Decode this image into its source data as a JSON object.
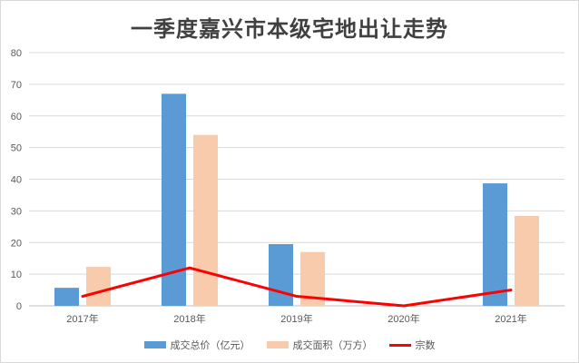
{
  "chart_data": {
    "type": "bar",
    "title": "一季度嘉兴市本级宅地出让走势",
    "categories": [
      "2017年",
      "2018年",
      "2019年",
      "2020年",
      "2021年"
    ],
    "ylim": [
      0,
      80
    ],
    "yticks": [
      0,
      10,
      20,
      30,
      40,
      50,
      60,
      70,
      80
    ],
    "grid": true,
    "legend_position": "bottom",
    "series": [
      {
        "name": "成交总价（亿元）",
        "type": "bar",
        "color": "#5B9BD5",
        "values": [
          5.7,
          67,
          19.5,
          0,
          38.7
        ]
      },
      {
        "name": "成交面积（万方）",
        "type": "bar",
        "color": "#F8CBAD",
        "values": [
          12.3,
          54,
          17,
          0,
          28.4
        ]
      },
      {
        "name": "宗数",
        "type": "line",
        "color": "#FF0000",
        "values": [
          3,
          12,
          3,
          0,
          5
        ]
      }
    ]
  }
}
